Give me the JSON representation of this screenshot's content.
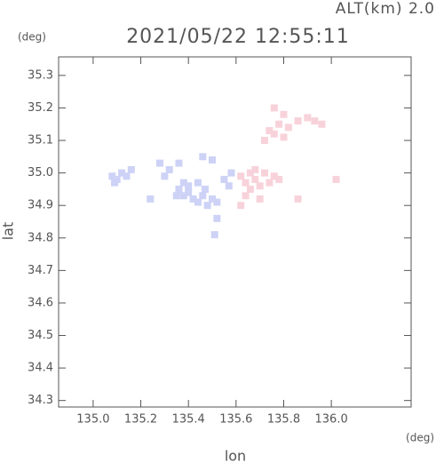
{
  "chart_data": {
    "type": "scatter",
    "title": "2021/05/22 12:55:11",
    "altitude_label": "ALT(km) 2.0",
    "x_label": "lon",
    "y_label": "lat",
    "x_unit": "(deg)",
    "y_unit": "(deg)",
    "xlim": [
      134.855,
      136.335
    ],
    "ylim": [
      34.28,
      35.357
    ],
    "xticks": [
      {
        "value": 135.0,
        "label": "135.0"
      },
      135.2,
      135.4,
      135.6,
      135.8,
      {
        "value": 136.0,
        "label": "136.0"
      }
    ],
    "yticks": [
      34.3,
      34.4,
      34.5,
      34.6,
      34.7,
      34.8,
      34.9,
      {
        "value": 35.0,
        "label": "35.0"
      },
      35.1,
      35.2,
      35.3
    ],
    "series": [
      {
        "color": "#cdd2f6",
        "x": [
          135.08,
          135.1,
          135.12,
          135.14,
          135.16,
          135.09,
          135.36,
          135.38,
          135.4,
          135.42,
          135.44,
          135.46,
          135.48,
          135.5,
          135.4,
          135.44,
          135.38,
          135.47,
          135.52,
          135.35,
          135.28,
          135.32,
          135.36,
          135.46,
          135.5,
          135.3,
          135.55,
          135.58,
          135.57,
          135.52,
          135.51,
          135.24
        ],
        "y": [
          34.99,
          34.98,
          35.0,
          34.99,
          35.01,
          34.97,
          34.95,
          34.93,
          34.94,
          34.92,
          34.91,
          34.93,
          34.9,
          34.92,
          34.96,
          34.97,
          34.97,
          34.95,
          34.91,
          34.93,
          35.03,
          35.01,
          35.03,
          35.05,
          35.04,
          34.99,
          34.98,
          35.0,
          34.96,
          34.86,
          34.81,
          34.92
        ]
      },
      {
        "color": "#f8d2da",
        "x": [
          135.62,
          135.64,
          135.66,
          135.68,
          135.7,
          135.72,
          135.66,
          135.7,
          135.74,
          135.76,
          135.64,
          135.68,
          135.78,
          135.72,
          135.74,
          135.76,
          135.78,
          135.8,
          135.76,
          135.8,
          135.82,
          135.86,
          135.9,
          135.93,
          135.96,
          136.02,
          135.86,
          135.62
        ],
        "y": [
          34.99,
          34.97,
          35.0,
          34.98,
          34.96,
          35.0,
          34.95,
          34.92,
          34.97,
          34.99,
          34.93,
          35.01,
          34.98,
          35.1,
          35.13,
          35.12,
          35.15,
          35.11,
          35.2,
          35.18,
          35.14,
          35.16,
          35.17,
          35.16,
          35.15,
          34.98,
          34.92,
          34.9
        ]
      }
    ]
  }
}
